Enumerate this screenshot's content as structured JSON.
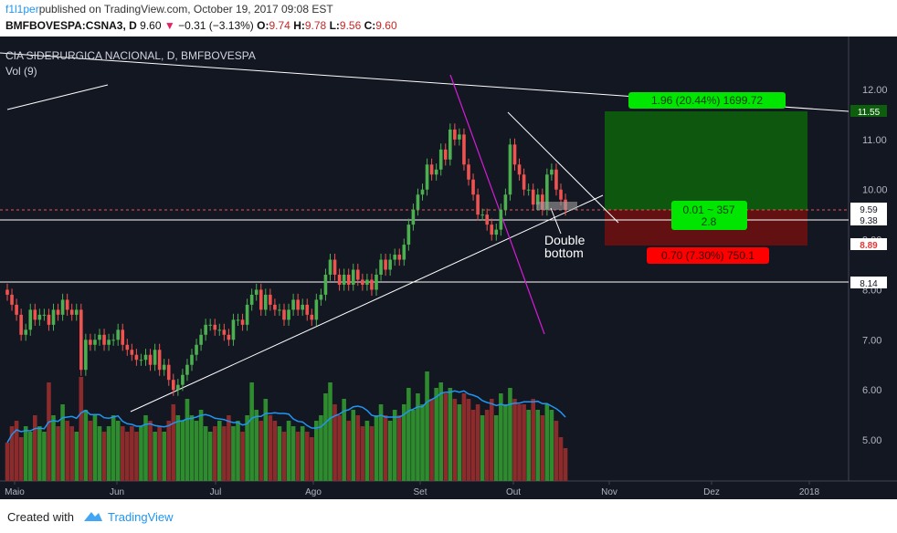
{
  "header": {
    "author": "f1l1per",
    "published": "published on TradingView.com, October 19, 2017 09:08 EST",
    "symbol": "BMFBOVESPA:CSNA3, D",
    "price": "9.60",
    "change": "−0.31 (−3.13%)",
    "o_label": "O:",
    "o": "9.74",
    "h_label": "H:",
    "h": "9.78",
    "l_label": "L:",
    "l": "9.56",
    "c_label": "C:",
    "c": "9.60"
  },
  "legend": {
    "name": "CIA SIDERURGICA NACIONAL, D, BMFBOVESPA",
    "vol": "Vol (9)"
  },
  "annotations": {
    "double_bottom_1": "Double",
    "double_bottom_2": "bottom",
    "target": "1.96 (20.44%) 1699.72",
    "stop": "0.70 (7.30%) 750.1",
    "ratio_1": "0.01 ~ 357",
    "ratio_2": "2.8"
  },
  "footer": {
    "created": "Created with",
    "brand": "TradingView"
  },
  "colors": {
    "background": "#131722",
    "up": "#4caf50",
    "down": "#ef5350",
    "vol_up": "#2e8b2e",
    "vol_down": "#8b2b2b",
    "vol_ma": "#2196f3",
    "trendline_magenta": "#d81bd8",
    "target_zone": "#0d5e0d",
    "stop_zone": "#6b0f0f"
  },
  "chart_data": {
    "type": "candlestick",
    "x_tick_labels": [
      "Maio",
      "Jun",
      "Jul",
      "Ago",
      "Set",
      "Out",
      "Nov",
      "Dez",
      "2018"
    ],
    "y_tick_labels": [
      "12.00",
      "11.00",
      "10.00",
      "9.00",
      "8.00",
      "7.00",
      "6.00",
      "5.00"
    ],
    "ylim": [
      4.3,
      12.9
    ],
    "price_marks": [
      {
        "label": "11.55",
        "value": 11.55
      },
      {
        "label": "9.59",
        "value": 9.59
      },
      {
        "label": "9.38",
        "value": 9.38
      },
      {
        "label": "8.89",
        "value": 8.89
      },
      {
        "label": "8.14",
        "value": 8.14
      }
    ],
    "closes": [
      7.9,
      7.7,
      7.5,
      7.1,
      7.2,
      7.6,
      7.4,
      7.5,
      7.5,
      7.3,
      7.6,
      7.5,
      7.8,
      7.6,
      7.5,
      7.6,
      6.4,
      7.0,
      6.9,
      7.0,
      7.1,
      6.9,
      7.0,
      7.0,
      7.2,
      6.9,
      6.8,
      6.7,
      6.6,
      6.6,
      6.7,
      6.5,
      6.8,
      6.4,
      6.5,
      6.2,
      6.0,
      6.1,
      6.3,
      6.5,
      6.7,
      6.9,
      7.1,
      7.3,
      7.3,
      7.2,
      7.2,
      7.1,
      7.0,
      7.4,
      7.4,
      7.3,
      7.7,
      7.9,
      8.0,
      7.6,
      7.9,
      7.7,
      7.6,
      7.6,
      7.4,
      7.6,
      7.8,
      7.6,
      7.7,
      7.5,
      7.4,
      7.8,
      7.9,
      8.3,
      8.6,
      8.3,
      8.1,
      8.3,
      8.1,
      8.4,
      8.2,
      8.1,
      8.2,
      8.0,
      8.3,
      8.6,
      8.4,
      8.6,
      8.7,
      8.6,
      8.9,
      9.3,
      9.6,
      9.9,
      10.0,
      10.5,
      10.3,
      10.4,
      10.8,
      10.6,
      11.2,
      11.0,
      11.1,
      10.5,
      10.2,
      9.9,
      9.5,
      9.5,
      9.3,
      9.1,
      9.2,
      9.6,
      9.9,
      10.9,
      10.5,
      10.3,
      10.0,
      10.0,
      9.7,
      9.9,
      9.6,
      10.3,
      10.4,
      10.0,
      9.8,
      9.6
    ],
    "volumes": [
      0.35,
      0.5,
      0.55,
      0.4,
      0.5,
      0.45,
      0.6,
      0.5,
      0.45,
      0.9,
      0.6,
      0.5,
      0.7,
      0.55,
      0.5,
      0.45,
      0.95,
      0.65,
      0.55,
      0.6,
      0.5,
      0.45,
      0.5,
      0.6,
      0.55,
      0.5,
      0.45,
      0.5,
      0.45,
      0.5,
      0.6,
      0.55,
      0.45,
      0.5,
      0.45,
      0.55,
      0.7,
      0.6,
      0.55,
      0.75,
      0.6,
      0.55,
      0.65,
      0.5,
      0.45,
      0.5,
      0.55,
      0.5,
      0.6,
      0.5,
      0.55,
      0.45,
      0.6,
      0.9,
      0.65,
      0.55,
      0.75,
      0.6,
      0.55,
      0.5,
      0.45,
      0.55,
      0.5,
      0.45,
      0.5,
      0.45,
      0.4,
      0.55,
      0.6,
      0.8,
      0.9,
      0.7,
      0.6,
      0.75,
      0.55,
      0.65,
      0.6,
      0.5,
      0.55,
      0.5,
      0.6,
      0.7,
      0.6,
      0.55,
      0.65,
      0.6,
      0.7,
      0.85,
      0.65,
      0.8,
      0.7,
      1.0,
      0.75,
      0.85,
      0.9,
      0.8,
      0.85,
      0.75,
      0.7,
      0.8,
      0.75,
      0.65,
      0.7,
      0.6,
      0.65,
      0.75,
      0.6,
      0.8,
      0.7,
      0.85,
      0.75,
      0.7,
      0.7,
      0.65,
      0.75,
      0.65,
      0.6,
      0.7,
      0.65,
      0.55,
      0.4,
      0.3
    ]
  }
}
